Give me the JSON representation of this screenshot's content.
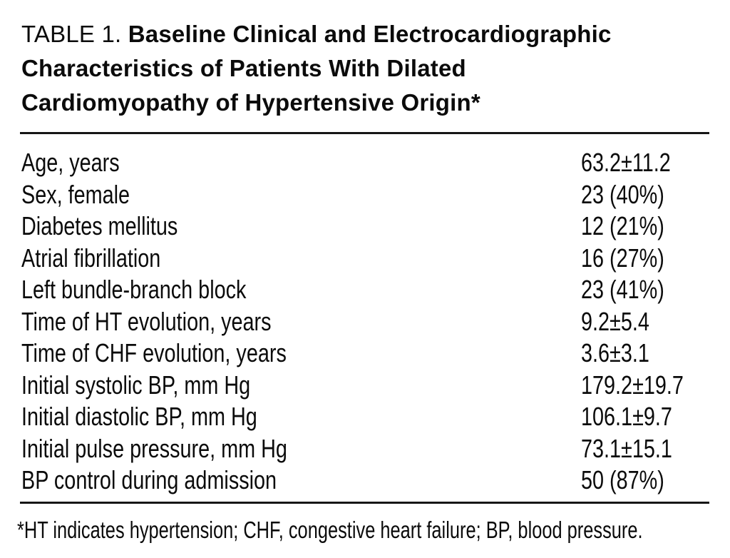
{
  "table": {
    "label": "TABLE 1.",
    "title": "Baseline Clinical and Electrocardiographic Characteristics of Patients With Dilated Cardiomyopathy of Hypertensive Origin*",
    "title_lines": [
      "Baseline Clinical and Electrocardiographic",
      "Characteristics of Patients With Dilated",
      "Cardiomyopathy of Hypertensive Origin*"
    ],
    "rows": [
      {
        "characteristic": "Age, years",
        "value": "63.2±11.2"
      },
      {
        "characteristic": "Sex, female",
        "value": "23 (40%)"
      },
      {
        "characteristic": "Diabetes mellitus",
        "value": "12 (21%)"
      },
      {
        "characteristic": "Atrial fibrillation",
        "value": "16 (27%)"
      },
      {
        "characteristic": "Left bundle-branch block",
        "value": "23 (41%)"
      },
      {
        "characteristic": "Time of HT evolution, years",
        "value": "9.2±5.4"
      },
      {
        "characteristic": "Time of CHF evolution, years",
        "value": "3.6±3.1"
      },
      {
        "characteristic": "Initial systolic BP, mm Hg",
        "value": "179.2±19.7"
      },
      {
        "characteristic": "Initial diastolic BP, mm Hg",
        "value": "106.1±9.7"
      },
      {
        "characteristic": "Initial pulse pressure, mm Hg",
        "value": "73.1±15.1"
      },
      {
        "characteristic": "BP control during admission",
        "value": "50 (87%)"
      }
    ],
    "footnote": "*HT indicates hypertension; CHF, congestive heart failure; BP, blood pressure."
  },
  "colors": {
    "text": "#0b0b0b",
    "background": "#ffffff",
    "rule": "#161616"
  }
}
